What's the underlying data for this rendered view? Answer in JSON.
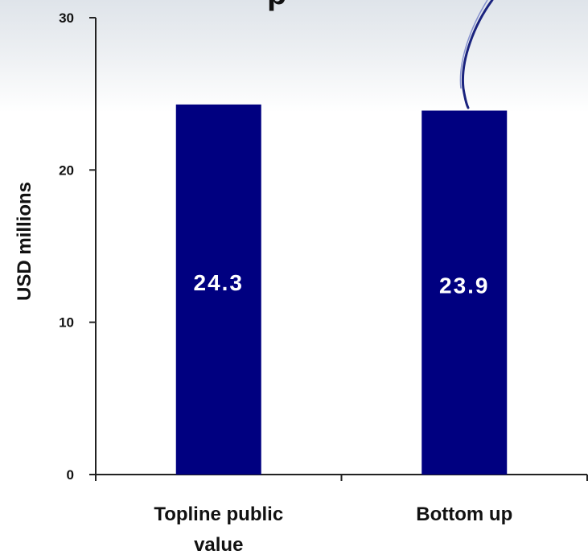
{
  "chart_data": {
    "type": "bar",
    "title": "",
    "title_fragment": "p",
    "categories": [
      "Topline public value",
      "Bottom up"
    ],
    "category_lines": [
      [
        "Topline public",
        "value"
      ],
      [
        "Bottom up"
      ]
    ],
    "values": [
      24.3,
      23.9
    ],
    "data_labels": [
      "24.3",
      "23.9"
    ],
    "xlabel": "",
    "ylabel": "USD millions",
    "ylim": [
      0,
      30
    ],
    "yticks": [
      0,
      10,
      20,
      30
    ],
    "ytick_labels": [
      "0",
      "10",
      "20",
      "30"
    ],
    "grid": false,
    "legend": "none"
  },
  "colors": {
    "bar": "#000080",
    "axis": "#222222",
    "annotation_stroke": "#1a237e"
  }
}
